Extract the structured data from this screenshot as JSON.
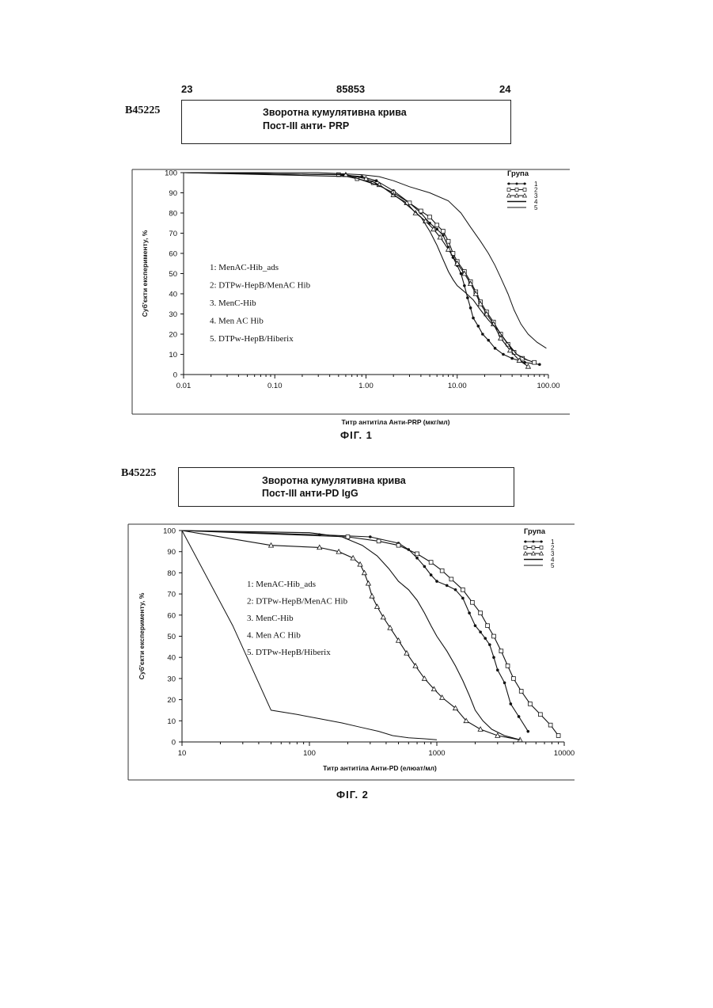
{
  "page": {
    "left_number": "23",
    "center_number": "85853",
    "right_number": "24"
  },
  "figures": [
    {
      "code": "B45225",
      "title_line1": "Зворотна кумулятивна крива",
      "title_line2": "Пост-ІІІ анти- PRP",
      "caption": "ФІГ. 1",
      "legend_title": "Група",
      "series_labels": [
        "1: MenAC-Hib_ads",
        "2: DTPw-HepB/MenAC Hib",
        "3. MenC-Hib",
        "4. Men AC Hib",
        "5. DTPw-HepB/Hiberix"
      ]
    },
    {
      "code": "B45225",
      "title_line1": "Зворотна кумулятивна крива",
      "title_line2": "Пост-ІІІ анти-PD IgG",
      "caption": "ФІГ. 2",
      "legend_title": "Група",
      "series_labels": [
        "1: MenAC-Hib_ads",
        "2: DTPw-HepB/MenAC Hib",
        "3. MenC-Hib",
        "4. Men AC Hib",
        "5. DTPw-HepB/Hiberix"
      ]
    }
  ],
  "chart_data": [
    {
      "type": "line",
      "title": "Зворотна кумулятивна крива Пост-ІІІ анти- PRP",
      "xlabel": "Титр антитіла Анти-PRP (мкг/мл)",
      "ylabel": "Суб'єкти експерименту, %",
      "x_scale": "log",
      "xlim": [
        0.01,
        100
      ],
      "ylim": [
        0,
        100
      ],
      "x_ticks": [
        "0.01",
        "0.10",
        "1.00",
        "10.00",
        "100.00"
      ],
      "y_ticks": [
        "0",
        "10",
        "20",
        "30",
        "40",
        "50",
        "60",
        "70",
        "80",
        "90",
        "100"
      ],
      "legend_title": "Група",
      "legend_entries": [
        "1",
        "2",
        "3",
        "4",
        "5"
      ],
      "legend_placement": "top-right",
      "series": [
        {
          "name": "1",
          "marker": "dot",
          "x": [
            0.01,
            0.5,
            0.9,
            1.3,
            2.0,
            3.0,
            4.0,
            5.0,
            6.0,
            7.0,
            8.0,
            9.0,
            10,
            11,
            12,
            13,
            14,
            15,
            17,
            19,
            22,
            26,
            32,
            40,
            55,
            80
          ],
          "y": [
            100,
            99,
            98,
            96,
            91,
            85,
            80,
            75,
            72,
            69,
            63,
            58,
            54,
            50,
            44,
            38,
            33,
            28,
            24,
            20,
            17,
            13,
            10,
            8,
            6,
            5
          ]
        },
        {
          "name": "2",
          "marker": "square",
          "x": [
            0.01,
            0.5,
            0.8,
            1.2,
            2.0,
            3.0,
            4.0,
            5.0,
            6.0,
            7.0,
            8.0,
            9.0,
            10,
            12,
            14,
            16,
            18,
            21,
            25,
            30,
            36,
            42,
            52,
            70
          ],
          "y": [
            100,
            99,
            97,
            95,
            90,
            85,
            81,
            78,
            74,
            71,
            66,
            60,
            56,
            51,
            46,
            41,
            36,
            31,
            26,
            20,
            15,
            11,
            8,
            6
          ]
        },
        {
          "name": "3",
          "marker": "triangle",
          "x": [
            0.01,
            0.6,
            1.0,
            1.4,
            2.0,
            2.8,
            3.5,
            4.5,
            5.5,
            6.5,
            8.0,
            10,
            12,
            14,
            16,
            18,
            21,
            25,
            30,
            38,
            48,
            60
          ],
          "y": [
            100,
            99,
            97,
            94,
            89,
            85,
            80,
            76,
            72,
            68,
            62,
            55,
            50,
            45,
            40,
            35,
            30,
            25,
            18,
            12,
            7,
            4
          ]
        },
        {
          "name": "4",
          "marker": "none",
          "x": [
            0.01,
            0.7,
            1.5,
            2.5,
            4.0,
            5.0,
            6.0,
            7.0,
            8.0,
            9.0,
            10,
            12,
            15,
            18,
            22,
            28,
            35,
            45,
            60
          ],
          "y": [
            100,
            98,
            93,
            86,
            78,
            71,
            64,
            57,
            51,
            47,
            44,
            41,
            37,
            32,
            27,
            22,
            16,
            10,
            7
          ]
        },
        {
          "name": "5",
          "marker": "none",
          "x": [
            0.01,
            0.3,
            0.9,
            1.4,
            2.0,
            3.0,
            5.0,
            8.0,
            11,
            14,
            18,
            22,
            26,
            30,
            36,
            42,
            50,
            60,
            75,
            95
          ],
          "y": [
            100,
            100,
            99,
            98,
            96,
            93,
            90,
            86,
            80,
            73,
            66,
            60,
            54,
            48,
            40,
            32,
            25,
            20,
            16,
            13
          ]
        }
      ]
    },
    {
      "type": "line",
      "title": "Зворотна кумулятивна крива Пост-ІІІ анти-PD IgG",
      "xlabel": "Титр антитіла Анти-PD (елюат/мл)",
      "ylabel": "Суб'єкти експерименту, %",
      "x_scale": "log",
      "xlim": [
        10,
        10000
      ],
      "ylim": [
        0,
        100
      ],
      "x_ticks": [
        "10",
        "100",
        "1000",
        "10000"
      ],
      "y_ticks": [
        "0",
        "10",
        "20",
        "30",
        "40",
        "50",
        "60",
        "70",
        "80",
        "90",
        "100"
      ],
      "legend_title": "Група",
      "legend_entries": [
        "1",
        "2",
        "3",
        "4",
        "5"
      ],
      "legend_placement": "top-right",
      "series": [
        {
          "name": "1",
          "marker": "dot",
          "x": [
            10,
            120,
            300,
            500,
            600,
            700,
            800,
            900,
            1000,
            1200,
            1400,
            1600,
            1800,
            2000,
            2200,
            2400,
            2600,
            2800,
            3000,
            3400,
            3800,
            4400,
            5200
          ],
          "y": [
            100,
            98,
            97,
            94,
            91,
            87,
            83,
            79,
            76,
            74,
            72,
            68,
            61,
            55,
            52,
            49,
            46,
            40,
            34,
            28,
            18,
            12,
            5
          ]
        },
        {
          "name": "2",
          "marker": "square",
          "x": [
            10,
            200,
            350,
            500,
            700,
            900,
            1100,
            1300,
            1600,
            1900,
            2200,
            2500,
            2800,
            3200,
            3600,
            4000,
            4600,
            5400,
            6500,
            7800,
            9000
          ],
          "y": [
            100,
            97,
            95,
            93,
            89,
            85,
            81,
            77,
            72,
            66,
            61,
            55,
            50,
            43,
            36,
            30,
            24,
            18,
            13,
            8,
            3
          ]
        },
        {
          "name": "3",
          "marker": "triangle",
          "x": [
            10,
            50,
            120,
            170,
            220,
            250,
            270,
            290,
            310,
            340,
            380,
            430,
            500,
            580,
            680,
            800,
            950,
            1100,
            1400,
            1700,
            2200,
            3000,
            4500
          ],
          "y": [
            100,
            93,
            92,
            90,
            87,
            84,
            80,
            75,
            69,
            64,
            59,
            54,
            48,
            42,
            36,
            30,
            25,
            21,
            16,
            10,
            6,
            3,
            1
          ]
        },
        {
          "name": "4",
          "marker": "none",
          "x": [
            10,
            100,
            180,
            260,
            340,
            420,
            500,
            600,
            700,
            800,
            900,
            1000,
            1200,
            1400,
            1600,
            1800,
            2000,
            2300,
            2700,
            3400,
            4500
          ],
          "y": [
            100,
            99,
            97,
            93,
            88,
            82,
            76,
            72,
            67,
            61,
            55,
            50,
            43,
            36,
            29,
            22,
            15,
            10,
            6,
            3,
            1
          ]
        },
        {
          "name": "5",
          "marker": "none",
          "x": [
            10,
            25,
            50,
            80,
            120,
            180,
            250,
            350,
            450,
            600,
            800,
            1000
          ],
          "y": [
            100,
            55,
            15,
            13,
            11,
            9,
            7,
            5,
            3,
            2,
            1.5,
            1
          ]
        }
      ]
    }
  ]
}
